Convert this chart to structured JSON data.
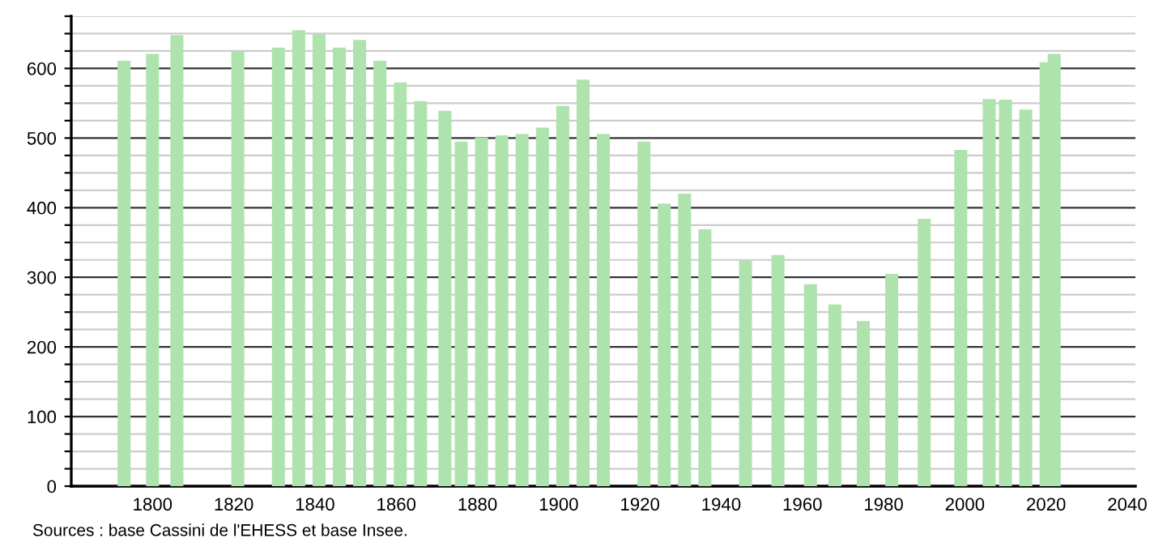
{
  "chart_data": {
    "type": "bar",
    "color": "#aee3ad",
    "x": [
      1793,
      1800,
      1806,
      1821,
      1831,
      1836,
      1841,
      1846,
      1851,
      1856,
      1861,
      1866,
      1872,
      1876,
      1881,
      1886,
      1891,
      1896,
      1901,
      1906,
      1911,
      1921,
      1926,
      1931,
      1936,
      1946,
      1954,
      1962,
      1968,
      1975,
      1982,
      1990,
      1999,
      2006,
      2010,
      2015,
      2020,
      2022
    ],
    "values": [
      611,
      621,
      648,
      625,
      630,
      655,
      649,
      630,
      641,
      611,
      580,
      553,
      539,
      495,
      501,
      504,
      506,
      515,
      546,
      584,
      506,
      495,
      406,
      420,
      369,
      324,
      332,
      290,
      261,
      237,
      305,
      384,
      483,
      556,
      555,
      541,
      609,
      621
    ],
    "xlim": [
      1780,
      2042
    ],
    "xticks": [
      1800,
      1820,
      1840,
      1860,
      1880,
      1900,
      1920,
      1940,
      1960,
      1980,
      2000,
      2020,
      2040
    ],
    "ylim": [
      0,
      675
    ],
    "yticks": [
      0,
      {
        "value": 25,
        "label": null
      },
      {
        "value": 50,
        "label": null
      },
      {
        "value": 75,
        "label": null
      },
      100,
      {
        "value": 125,
        "label": null
      },
      {
        "value": 150,
        "label": null
      },
      {
        "value": 175,
        "label": null
      },
      200,
      {
        "value": 225,
        "label": null
      },
      {
        "value": 250,
        "label": null
      },
      {
        "value": 275,
        "label": null
      },
      300,
      {
        "value": 325,
        "label": null
      },
      {
        "value": 350,
        "label": null
      },
      {
        "value": 375,
        "label": null
      },
      400,
      {
        "value": 425,
        "label": null
      },
      {
        "value": 450,
        "label": null
      },
      {
        "value": 475,
        "label": null
      },
      500,
      {
        "value": 525,
        "label": null
      },
      {
        "value": 550,
        "label": null
      },
      {
        "value": 575,
        "label": null
      },
      600,
      {
        "value": 625,
        "label": null
      },
      {
        "value": 650,
        "label": null
      },
      {
        "value": 675,
        "label": null
      }
    ],
    "grid": "y",
    "annotations": [
      "Sources : base Cassini de l'EHESS et base Insee."
    ]
  }
}
